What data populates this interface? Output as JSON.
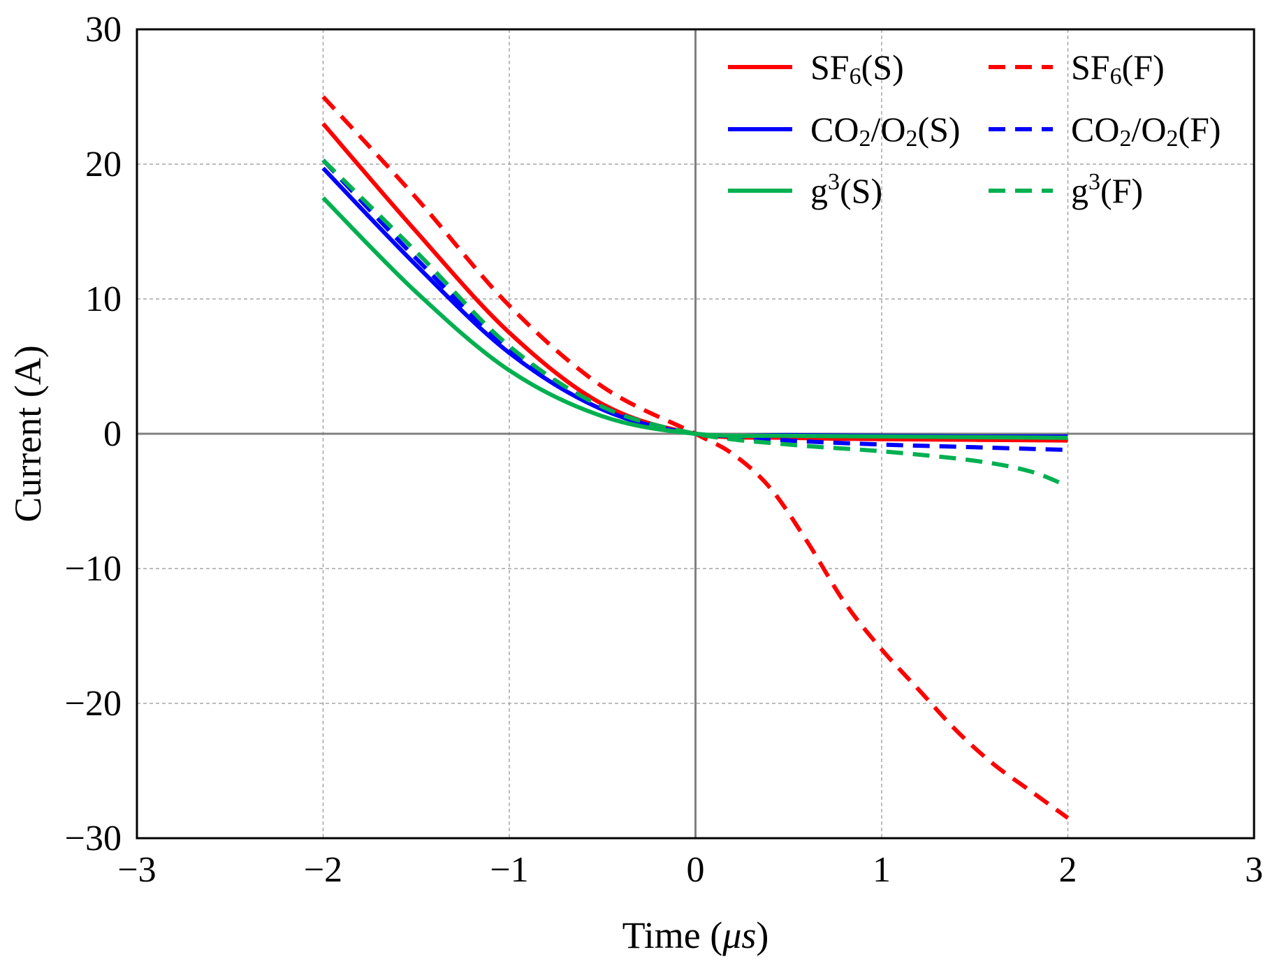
{
  "chart_data": {
    "type": "line",
    "title": "",
    "xlabel": "Time (μs)",
    "xlabel_parts": {
      "prefix": "Time (",
      "unit": "μs",
      "suffix": ")"
    },
    "ylabel": "Current (A)",
    "xlim": [
      -3,
      3
    ],
    "ylim": [
      -30,
      30
    ],
    "x_ticks": [
      -3,
      -2,
      -1,
      0,
      1,
      2,
      3
    ],
    "y_ticks": [
      -30,
      -20,
      -10,
      0,
      10,
      20,
      30
    ],
    "x_tick_labels": [
      "−3",
      "−2",
      "−1",
      "0",
      "1",
      "2",
      "3"
    ],
    "y_tick_labels": [
      "−30",
      "−20",
      "−10",
      "0",
      "10",
      "20",
      "30"
    ],
    "grid": true,
    "legend_position": "top-right",
    "colors": {
      "sf6": "#ff0000",
      "co2o2": "#0000ff",
      "g3": "#00b050",
      "axis": "#808080",
      "grid": "#a6a6a6"
    },
    "series": [
      {
        "name": "SF6(S)",
        "label_parts": [
          "SF",
          "6",
          "(S)"
        ],
        "sub_type": "sub",
        "color": "#ff0000",
        "dash": "solid",
        "x": [
          -2,
          -1.5,
          -1,
          -0.5,
          0,
          0.5,
          1,
          1.5,
          2
        ],
        "y": [
          23,
          15,
          7.5,
          2.2,
          0,
          -0.3,
          -0.4,
          -0.45,
          -0.5
        ]
      },
      {
        "name": "SF6(F)",
        "label_parts": [
          "SF",
          "6",
          "(F)"
        ],
        "sub_type": "sub",
        "color": "#ff0000",
        "dash": "dashed",
        "x": [
          -2,
          -1.5,
          -1,
          -0.5,
          0,
          0.2,
          0.4,
          0.6,
          0.8,
          1,
          1.2,
          1.4,
          1.6,
          1.8,
          2
        ],
        "y": [
          25,
          17.5,
          9.5,
          3.5,
          0,
          -1.5,
          -4,
          -8,
          -12.5,
          -16,
          -19,
          -22,
          -24.5,
          -26.5,
          -28.5
        ]
      },
      {
        "name": "CO2/O2(S)",
        "label_parts": [
          "CO",
          "2",
          "/O",
          "2",
          "(S)"
        ],
        "sub_type": "sub",
        "color": "#0000ff",
        "dash": "solid",
        "x": [
          -2,
          -1.5,
          -1,
          -0.5,
          0,
          0.5,
          1,
          1.5,
          2
        ],
        "y": [
          19.7,
          12.5,
          6,
          1.8,
          0,
          -0.1,
          -0.15,
          -0.2,
          -0.2
        ]
      },
      {
        "name": "CO2/O2(F)",
        "label_parts": [
          "CO",
          "2",
          "/O",
          "2",
          "(F)"
        ],
        "sub_type": "sub",
        "color": "#0000ff",
        "dash": "dashed",
        "x": [
          -2,
          -1.5,
          -1,
          -0.5,
          0,
          0.5,
          1,
          1.5,
          2
        ],
        "y": [
          20.3,
          13,
          6.3,
          2,
          0,
          -0.5,
          -0.8,
          -1,
          -1.2
        ]
      },
      {
        "name": "g3(S)",
        "label_parts": [
          "g",
          "3",
          "(S)"
        ],
        "sub_type": "sup",
        "color": "#00b050",
        "dash": "solid",
        "x": [
          -2,
          -1.5,
          -1,
          -0.5,
          0,
          0.5,
          1,
          1.5,
          2
        ],
        "y": [
          17.5,
          10.5,
          4.7,
          1.3,
          0,
          -0.15,
          -0.2,
          -0.25,
          -0.3
        ]
      },
      {
        "name": "g3(F)",
        "label_parts": [
          "g",
          "3",
          "(F)"
        ],
        "sub_type": "sup",
        "color": "#00b050",
        "dash": "dashed",
        "x": [
          -2,
          -1.5,
          -1,
          -0.5,
          0,
          0.5,
          1,
          1.5,
          1.8,
          2
        ],
        "y": [
          20.3,
          13.5,
          6.5,
          2,
          0,
          -0.8,
          -1.3,
          -2,
          -2.8,
          -3.9
        ]
      }
    ]
  }
}
